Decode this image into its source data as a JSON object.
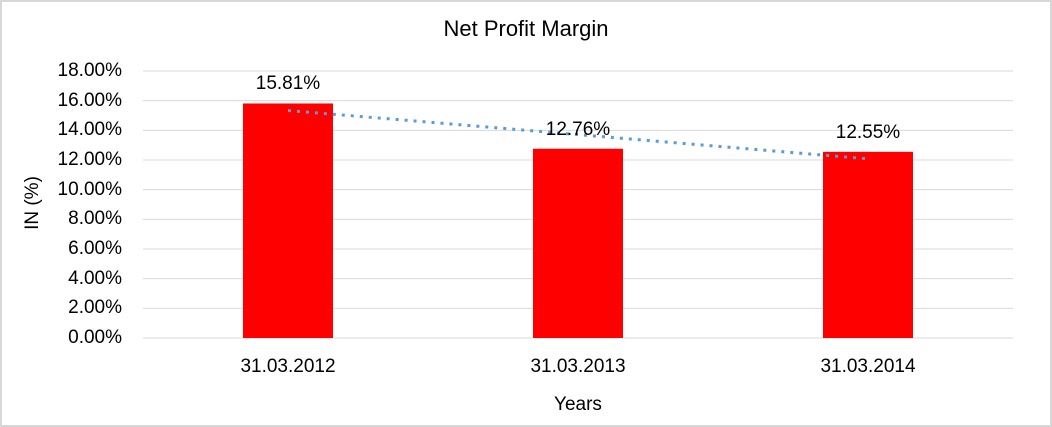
{
  "chart_data": {
    "type": "bar",
    "title": "Net Profit Margin",
    "xlabel": "Years",
    "ylabel": "IN (%)",
    "categories": [
      "31.03.2012",
      "31.03.2013",
      "31.03.2014"
    ],
    "values": [
      15.81,
      12.76,
      12.55
    ],
    "value_labels": [
      "15.81%",
      "12.76%",
      "12.55%"
    ],
    "ylim": [
      0,
      18
    ],
    "ytick_values": [
      0,
      2,
      4,
      6,
      8,
      10,
      12,
      14,
      16,
      18
    ],
    "ytick_labels": [
      "0.00%",
      "2.00%",
      "4.00%",
      "6.00%",
      "8.00%",
      "10.00%",
      "12.00%",
      "14.00%",
      "16.00%",
      "18.00%"
    ],
    "grid": true,
    "legend": "none",
    "bar_color": "#ff0000",
    "gridline_color": "#d9d9d9",
    "frame_color": "#d7d7d7",
    "trendline": {
      "type": "linear",
      "style": "dotted",
      "color": "#5b9bd5",
      "start_value": 15.34,
      "end_value": 12.08
    }
  }
}
